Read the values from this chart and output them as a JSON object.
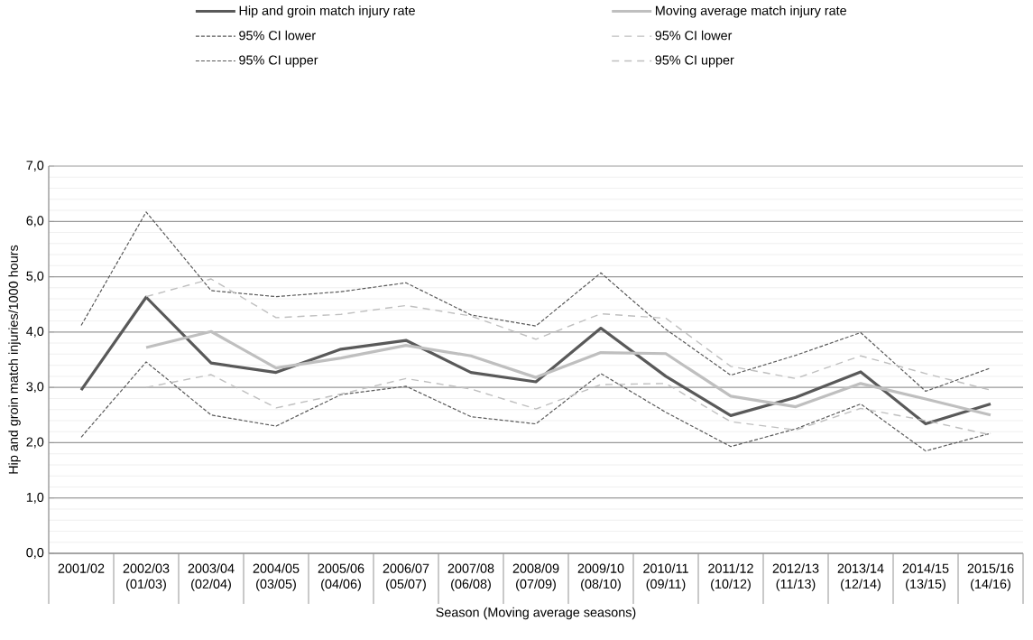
{
  "chart_data": {
    "type": "line",
    "xlabel": "Season (Moving average seasons)",
    "ylabel": "Hip and groin match injuries/1000 hours",
    "categories": [
      "2001/02",
      "2002/03 (01/03)",
      "2003/04 (02/04)",
      "2004/05 (03/05)",
      "2005/06 (04/06)",
      "2006/07 (05/07)",
      "2007/08 (06/08)",
      "2008/09 (07/09)",
      "2009/10 (08/10)",
      "2010/11 (09/11)",
      "2011/12 (10/12)",
      "2012/13 (11/13)",
      "2013/14 (12/14)",
      "2014/15 (13/15)",
      "2015/16 (14/16)"
    ],
    "series": [
      {
        "name": "Hip and groin match injury rate",
        "color": "#595959",
        "line_style": "solid",
        "values": [
          2.95,
          4.63,
          3.44,
          3.27,
          3.69,
          3.85,
          3.27,
          3.1,
          4.07,
          3.2,
          2.49,
          2.82,
          3.28,
          2.34,
          2.7
        ]
      },
      {
        "name": "Moving average match injury rate",
        "color": "#bfbfbf",
        "line_style": "solid",
        "values": [
          null,
          3.72,
          4.01,
          3.35,
          3.53,
          3.76,
          3.57,
          3.18,
          3.63,
          3.61,
          2.84,
          2.65,
          3.07,
          2.79,
          2.5
        ]
      },
      {
        "name": "95% CI lower",
        "color": "#595959",
        "line_style": "dotted",
        "values": [
          2.1,
          3.46,
          2.5,
          2.3,
          2.87,
          3.02,
          2.47,
          2.34,
          3.25,
          2.55,
          1.93,
          2.25,
          2.7,
          1.85,
          2.17
        ]
      },
      {
        "name": "95% CI lower",
        "color": "#bfbfbf",
        "line_style": "dashed",
        "values": [
          null,
          3.0,
          3.23,
          2.63,
          2.88,
          3.16,
          2.97,
          2.61,
          3.05,
          3.07,
          2.38,
          2.23,
          2.62,
          2.4,
          2.14
        ]
      },
      {
        "name": "95% CI upper",
        "color": "#595959",
        "line_style": "dotted",
        "values": [
          4.12,
          6.17,
          4.75,
          4.64,
          4.73,
          4.89,
          4.31,
          4.11,
          5.07,
          4.05,
          3.22,
          3.58,
          3.99,
          2.93,
          3.35
        ]
      },
      {
        "name": "95% CI upper",
        "color": "#bfbfbf",
        "line_style": "dashed",
        "values": [
          null,
          4.64,
          4.96,
          4.26,
          4.32,
          4.48,
          4.29,
          3.87,
          4.33,
          4.25,
          3.38,
          3.16,
          3.57,
          3.25,
          2.95
        ]
      }
    ],
    "ylim": [
      0,
      7
    ],
    "yticks": [
      {
        "value": 0,
        "label": "0,0"
      },
      {
        "value": 1,
        "label": "1,0"
      },
      {
        "value": 2,
        "label": "2,0"
      },
      {
        "value": 3,
        "label": "3,0"
      },
      {
        "value": 4,
        "label": "4,0"
      },
      {
        "value": 5,
        "label": "5,0"
      },
      {
        "value": 6,
        "label": "6,0"
      },
      {
        "value": 7,
        "label": "7,0"
      }
    ],
    "grid": "y",
    "legend": "top",
    "marker": "none"
  }
}
